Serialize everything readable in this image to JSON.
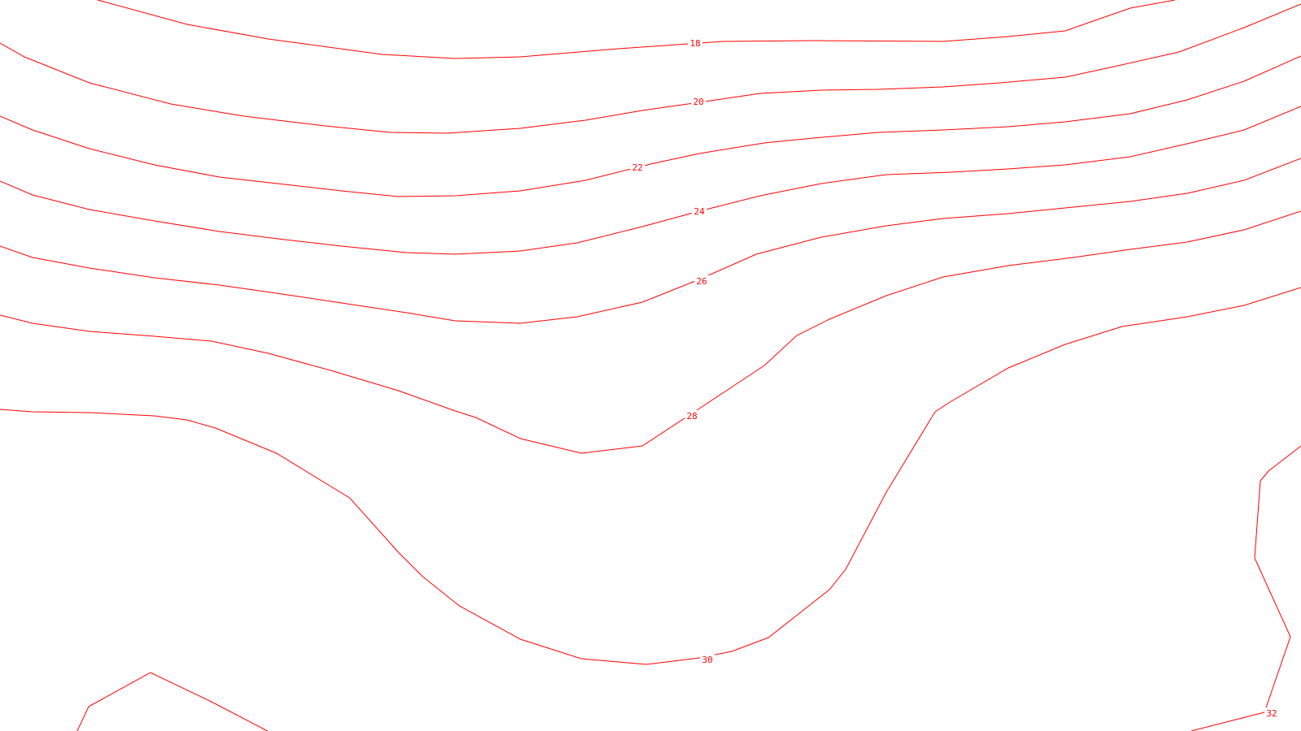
{
  "map": {
    "line_color": "#ff0000",
    "background": "#ffffff",
    "contours": [
      {
        "id": "c16",
        "label": ""
      },
      {
        "id": "c18",
        "label": "18"
      },
      {
        "id": "c20",
        "label": "20"
      },
      {
        "id": "c22",
        "label": "22"
      },
      {
        "id": "c24",
        "label": "24"
      },
      {
        "id": "c26",
        "label": "26"
      },
      {
        "id": "c28",
        "label": "28"
      },
      {
        "id": "c30",
        "label": "30"
      },
      {
        "id": "c32",
        "label": "32"
      },
      {
        "id": "c32b",
        "label": ""
      }
    ]
  }
}
